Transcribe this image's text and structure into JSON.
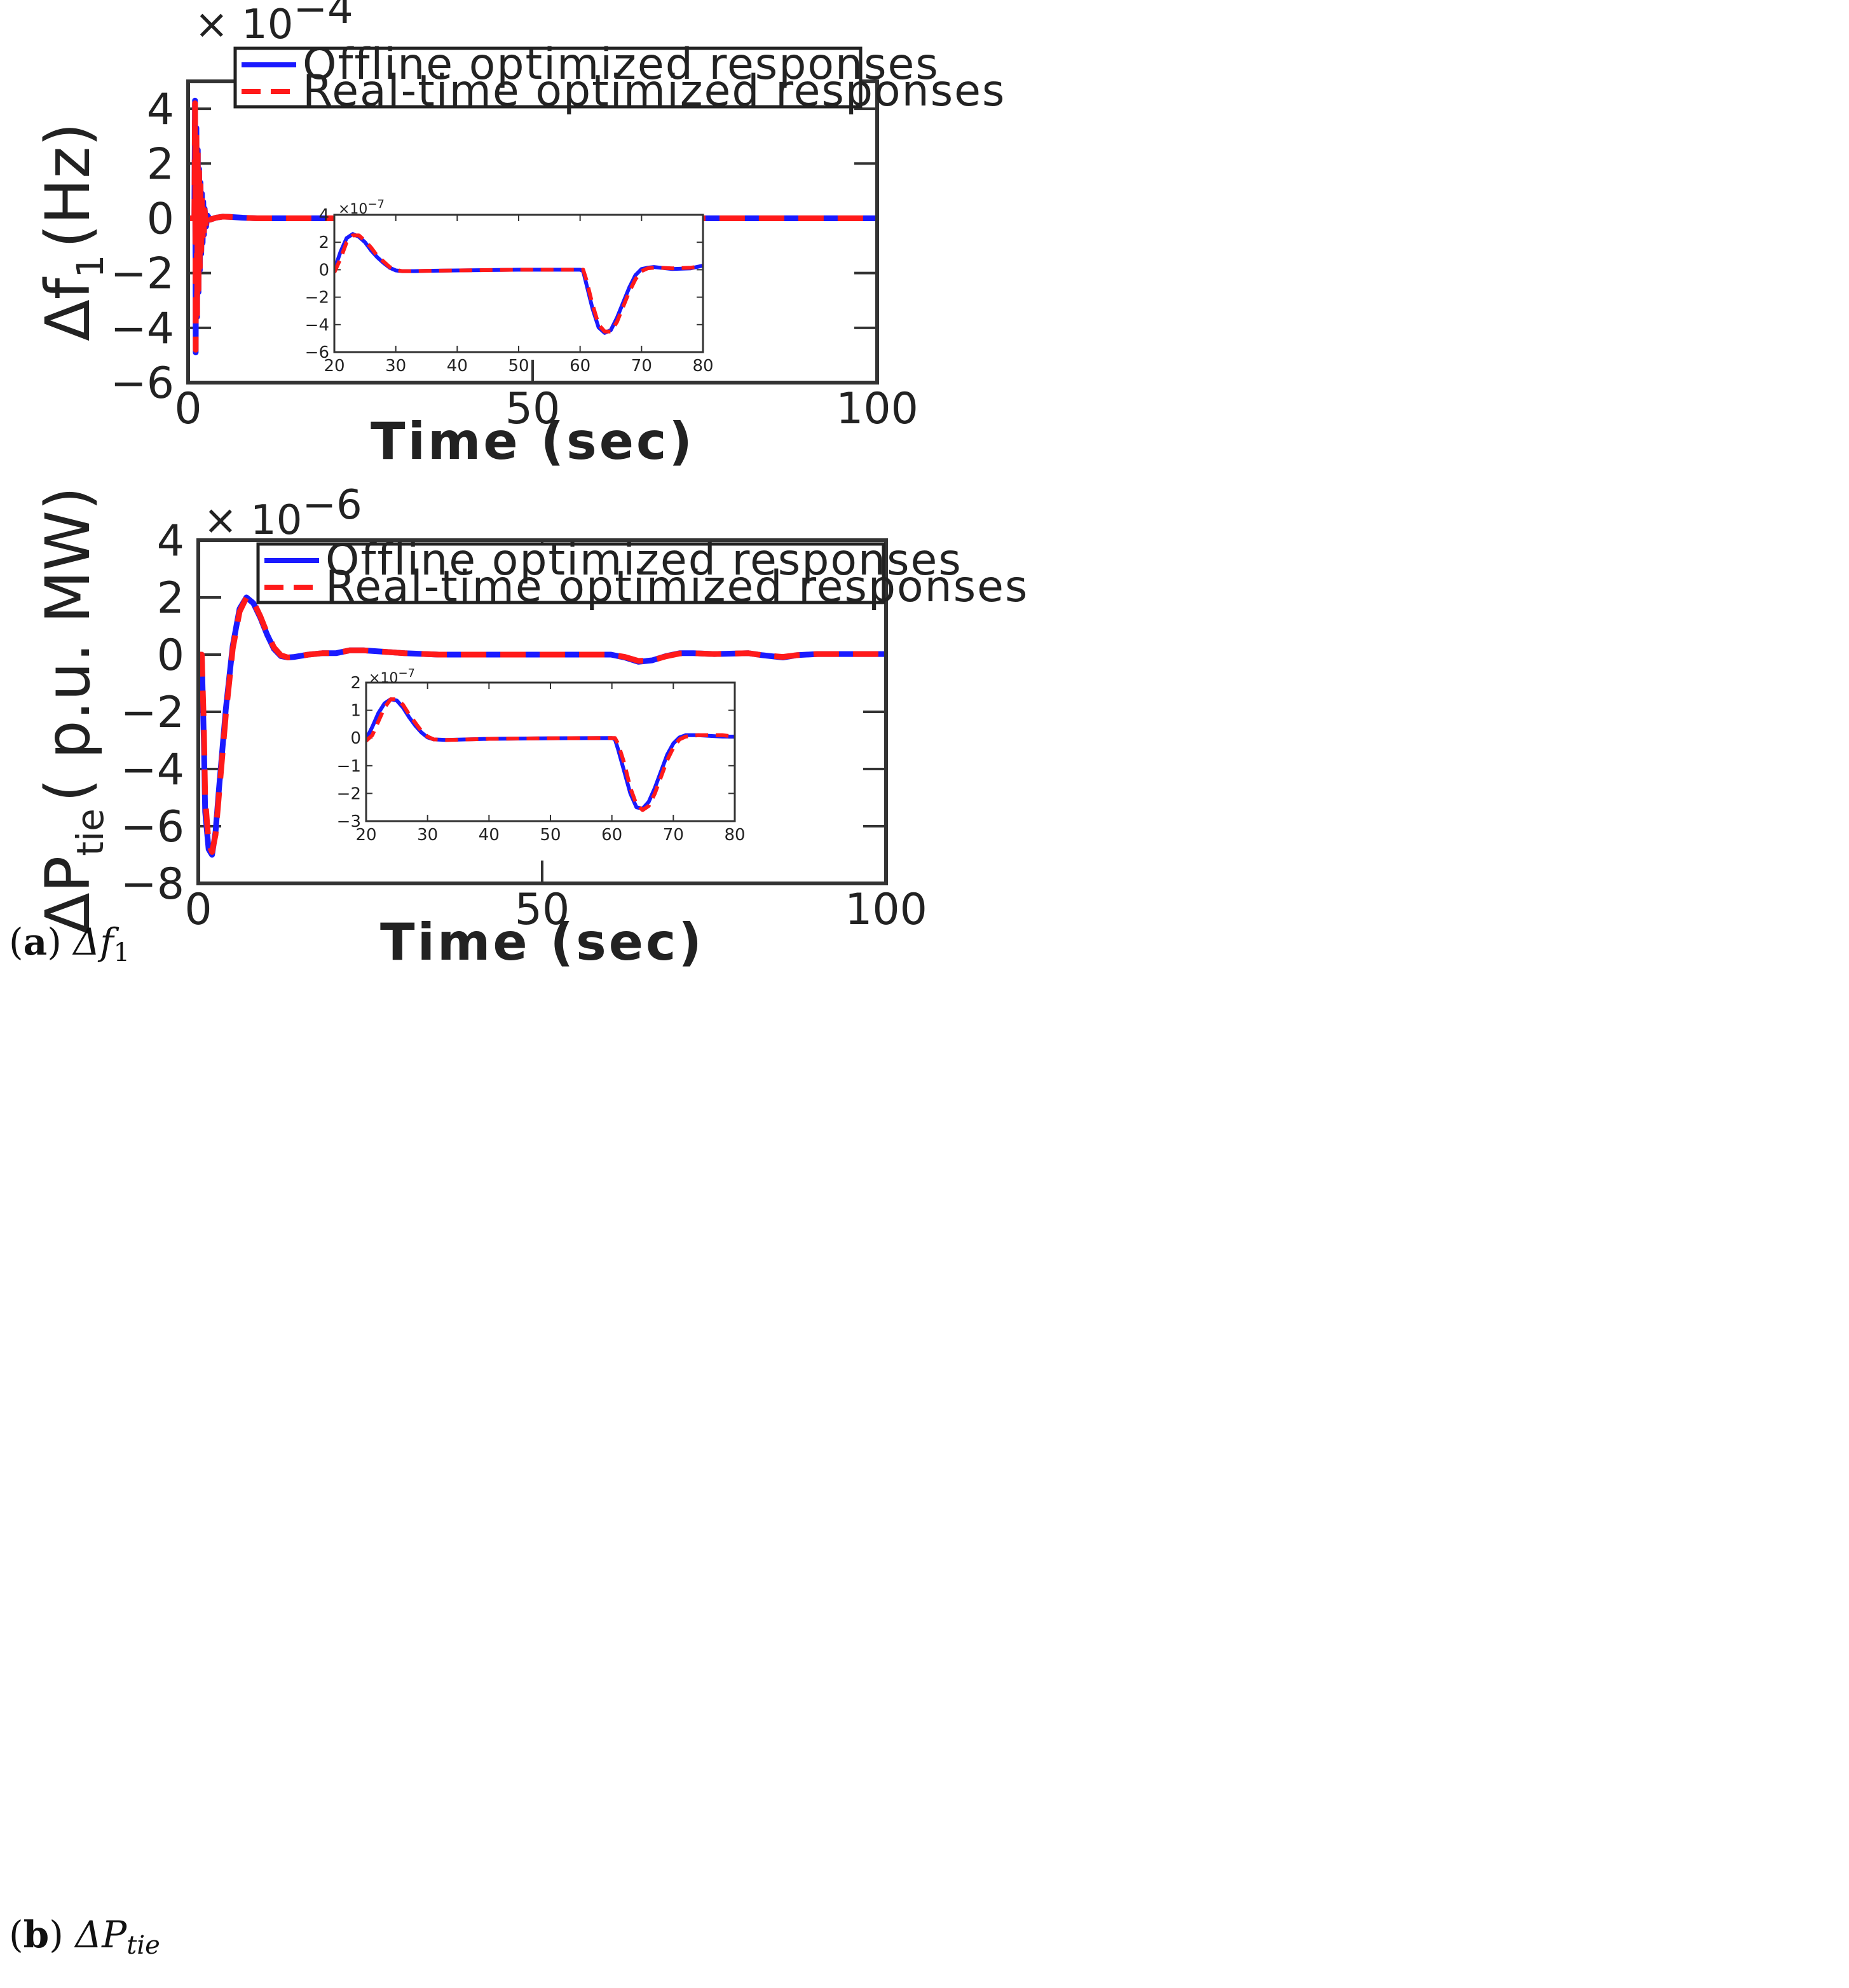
{
  "colors": {
    "offline": "#1a1aff",
    "realtime": "#ff1a1a",
    "axis": "#333333",
    "text": "#222222"
  },
  "captions": {
    "a": {
      "letter": "a",
      "symbol": "Δf",
      "sub": "1"
    },
    "b": {
      "letter": "b",
      "symbol": "ΔP",
      "sub": "tie"
    }
  },
  "chart_data": [
    {
      "id": "a",
      "type": "line",
      "xlabel": "Time (sec)",
      "ylabel": {
        "main": "Δf",
        "sub": "1",
        "unit": "(Hz)"
      },
      "exponent": {
        "base": "× 10",
        "power": "−4"
      },
      "xlim": [
        0,
        100
      ],
      "ylim": [
        -6,
        5
      ],
      "xticks": [
        0,
        50,
        100
      ],
      "yticks": [
        -6,
        -4,
        -2,
        0,
        2,
        4
      ],
      "ytick_labels": [
        "−6",
        "−4",
        "−2",
        "0",
        "2",
        "4"
      ],
      "legend": {
        "position": "top-right",
        "entries": [
          "Offline optimized responses",
          "Real-time optimized responses"
        ]
      },
      "series": [
        {
          "name": "Offline optimized responses",
          "style": "solid",
          "x": [
            0,
            0.9,
            1.0,
            1.1,
            1.2,
            1.3,
            1.4,
            1.5,
            1.6,
            1.7,
            1.8,
            1.9,
            2.0,
            2.1,
            2.2,
            2.3,
            2.4,
            2.6,
            2.8,
            3.2,
            4,
            5,
            6,
            8,
            10,
            15,
            30,
            50,
            100
          ],
          "y": [
            0,
            0,
            4.3,
            -4.9,
            3.3,
            -3.6,
            2.5,
            -2.7,
            1.8,
            -1.9,
            1.3,
            -1.3,
            0.9,
            -0.9,
            0.6,
            -0.6,
            0.35,
            -0.3,
            0.1,
            -0.05,
            0.02,
            0.06,
            0.05,
            0.02,
            0,
            0,
            0,
            0,
            0
          ]
        },
        {
          "name": "Real-time optimized responses",
          "style": "dashed",
          "x": [
            0,
            0.9,
            1.0,
            1.1,
            1.2,
            1.3,
            1.4,
            1.5,
            1.6,
            1.7,
            1.8,
            1.9,
            2.0,
            2.1,
            2.2,
            2.3,
            2.4,
            2.6,
            2.8,
            3.2,
            4,
            5,
            6,
            8,
            10,
            15,
            30,
            50,
            100
          ],
          "y": [
            0,
            0,
            4.2,
            -4.8,
            3.2,
            -3.5,
            2.4,
            -2.6,
            1.7,
            -1.8,
            1.2,
            -1.2,
            0.85,
            -0.85,
            0.55,
            -0.55,
            0.3,
            -0.3,
            0.1,
            -0.05,
            0.02,
            0.06,
            0.05,
            0.02,
            0,
            0,
            0,
            0,
            0
          ]
        }
      ],
      "inset": {
        "exponent": {
          "base": "×10",
          "power": "−7"
        },
        "xlim": [
          20,
          80
        ],
        "ylim": [
          -6,
          4
        ],
        "xticks": [
          20,
          30,
          40,
          50,
          60,
          70,
          80
        ],
        "yticks": [
          -6,
          -4,
          -2,
          0,
          2,
          4
        ],
        "ytick_labels": [
          "−6",
          "−4",
          "−2",
          "0",
          "2",
          "4"
        ],
        "series": [
          {
            "name": "Offline optimized responses",
            "style": "solid",
            "x": [
              20,
              21,
              22,
              23,
              24,
              25,
              26,
              27,
              28,
              29,
              30,
              31,
              33,
              35,
              40,
              50,
              60,
              60.5,
              61,
              62,
              63,
              64,
              65,
              66,
              67,
              68,
              69,
              70,
              71,
              72,
              73,
              75,
              78,
              80
            ],
            "y": [
              0,
              1.3,
              2.3,
              2.6,
              2.4,
              2.0,
              1.4,
              0.9,
              0.5,
              0.15,
              -0.05,
              -0.1,
              -0.1,
              -0.08,
              -0.05,
              0,
              0,
              -0.1,
              -1.0,
              -2.8,
              -4.2,
              -4.6,
              -4.4,
              -3.5,
              -2.4,
              -1.3,
              -0.4,
              0.05,
              0.15,
              0.2,
              0.15,
              0.05,
              0.1,
              0.3
            ]
          },
          {
            "name": "Real-time optimized responses",
            "style": "dashed",
            "x": [
              20,
              21,
              22,
              23,
              24,
              25,
              26,
              27,
              28,
              29,
              30,
              31,
              33,
              35,
              40,
              50,
              60,
              60.5,
              61,
              62,
              63,
              64,
              65,
              66,
              67,
              68,
              69,
              70,
              71,
              72,
              73,
              75,
              78,
              80
            ],
            "y": [
              -0.2,
              0.8,
              2.0,
              2.5,
              2.5,
              2.1,
              1.6,
              1.0,
              0.6,
              0.2,
              0,
              -0.1,
              -0.1,
              -0.08,
              -0.05,
              0,
              0,
              0,
              -0.7,
              -2.5,
              -4.0,
              -4.5,
              -4.5,
              -3.8,
              -2.7,
              -1.6,
              -0.7,
              -0.1,
              0.1,
              0.15,
              0.15,
              0.1,
              0.15,
              0.25
            ]
          }
        ]
      }
    },
    {
      "id": "b",
      "type": "line",
      "xlabel": "Time (sec)",
      "ylabel": {
        "main": "ΔP",
        "sub": "tie",
        "unit": "( p.u. MW)"
      },
      "exponent": {
        "base": "× 10",
        "power": "−6"
      },
      "xlim": [
        0,
        100
      ],
      "ylim": [
        -8,
        4
      ],
      "xticks": [
        0,
        50,
        100
      ],
      "yticks": [
        -8,
        -6,
        -4,
        -2,
        0,
        2,
        4
      ],
      "ytick_labels": [
        "−8",
        "−6",
        "−4",
        "−2",
        "0",
        "2",
        "4"
      ],
      "legend": {
        "position": "top-right",
        "entries": [
          "Offline optimized responses",
          "Real-time optimized responses"
        ]
      },
      "series": [
        {
          "name": "Offline optimized responses",
          "style": "solid",
          "x": [
            0,
            0.5,
            0.8,
            1,
            1.5,
            2,
            2.5,
            3,
            4,
            5,
            6,
            7,
            8,
            9,
            10,
            11,
            12,
            13,
            14,
            16,
            18,
            20,
            22,
            24,
            27,
            30,
            35,
            40,
            50,
            60,
            62,
            64,
            66,
            68,
            70,
            72,
            75,
            80,
            82,
            85,
            87,
            90,
            95,
            100
          ],
          "y": [
            0,
            0,
            -3,
            -5.5,
            -6.8,
            -7.0,
            -6.2,
            -4.7,
            -1.9,
            0.3,
            1.6,
            2.0,
            1.8,
            1.3,
            0.7,
            0.2,
            -0.05,
            -0.1,
            -0.08,
            0,
            0.05,
            0.05,
            0.15,
            0.15,
            0.1,
            0.05,
            0,
            0,
            0,
            0,
            -0.1,
            -0.25,
            -0.2,
            -0.05,
            0.05,
            0.05,
            0.02,
            0.05,
            -0.02,
            -0.1,
            -0.02,
            0.02,
            0.02,
            0.02
          ]
        },
        {
          "name": "Real-time optimized responses",
          "style": "dashed",
          "x": [
            0,
            0.5,
            0.8,
            1,
            1.5,
            2,
            2.5,
            3,
            4,
            5,
            6,
            7,
            8,
            9,
            10,
            11,
            12,
            13,
            14,
            16,
            18,
            20,
            22,
            24,
            27,
            30,
            35,
            40,
            50,
            60,
            62,
            64,
            66,
            68,
            70,
            72,
            75,
            80,
            82,
            85,
            87,
            90,
            95,
            100
          ],
          "y": [
            0,
            0,
            -2.5,
            -5.0,
            -6.6,
            -6.9,
            -6.3,
            -4.9,
            -2.1,
            0.2,
            1.5,
            2.0,
            1.85,
            1.35,
            0.75,
            0.25,
            -0.02,
            -0.1,
            -0.08,
            0,
            0.05,
            0.05,
            0.15,
            0.15,
            0.1,
            0.05,
            0,
            0,
            0,
            0,
            -0.08,
            -0.22,
            -0.2,
            -0.06,
            0.04,
            0.05,
            0.02,
            0.05,
            -0.02,
            -0.08,
            -0.02,
            0.02,
            0.02,
            0.02
          ]
        }
      ],
      "inset": {
        "exponent": {
          "base": "×10",
          "power": "−7"
        },
        "xlim": [
          20,
          80
        ],
        "ylim": [
          -3,
          2
        ],
        "xticks": [
          20,
          30,
          40,
          50,
          60,
          70,
          80
        ],
        "yticks": [
          -3,
          -2,
          -1,
          0,
          1,
          2
        ],
        "ytick_labels": [
          "−3",
          "−2",
          "−1",
          "0",
          "1",
          "2"
        ],
        "series": [
          {
            "name": "Offline optimized responses",
            "style": "solid",
            "x": [
              20,
              21,
              22,
              23,
              24,
              25,
              26,
              27,
              28,
              29,
              30,
              31,
              33,
              35,
              40,
              50,
              60,
              60.5,
              61,
              62,
              63,
              64,
              65,
              66,
              67,
              68,
              69,
              70,
              71,
              72,
              74,
              78,
              80
            ],
            "y": [
              -0.05,
              0.4,
              0.9,
              1.25,
              1.4,
              1.35,
              1.1,
              0.75,
              0.45,
              0.2,
              0.02,
              -0.05,
              -0.07,
              -0.06,
              -0.03,
              -0.01,
              0,
              -0.05,
              -0.4,
              -1.2,
              -2.0,
              -2.5,
              -2.55,
              -2.3,
              -1.8,
              -1.2,
              -0.6,
              -0.2,
              0.02,
              0.1,
              0.1,
              0.05,
              0.05
            ]
          },
          {
            "name": "Real-time optimized responses",
            "style": "dashed",
            "x": [
              20,
              21,
              22,
              23,
              24,
              25,
              26,
              27,
              28,
              29,
              30,
              31,
              33,
              35,
              40,
              50,
              60,
              60.5,
              61,
              62,
              63,
              64,
              65,
              66,
              67,
              68,
              69,
              70,
              71,
              72,
              74,
              78,
              80
            ],
            "y": [
              -0.1,
              0.1,
              0.6,
              1.1,
              1.4,
              1.4,
              1.2,
              0.85,
              0.55,
              0.25,
              0.05,
              -0.05,
              -0.07,
              -0.06,
              -0.03,
              -0.01,
              0,
              0,
              -0.2,
              -0.9,
              -1.8,
              -2.4,
              -2.6,
              -2.45,
              -2.0,
              -1.4,
              -0.8,
              -0.35,
              -0.05,
              0.05,
              0.1,
              0.1,
              0.05
            ]
          }
        ]
      }
    }
  ]
}
